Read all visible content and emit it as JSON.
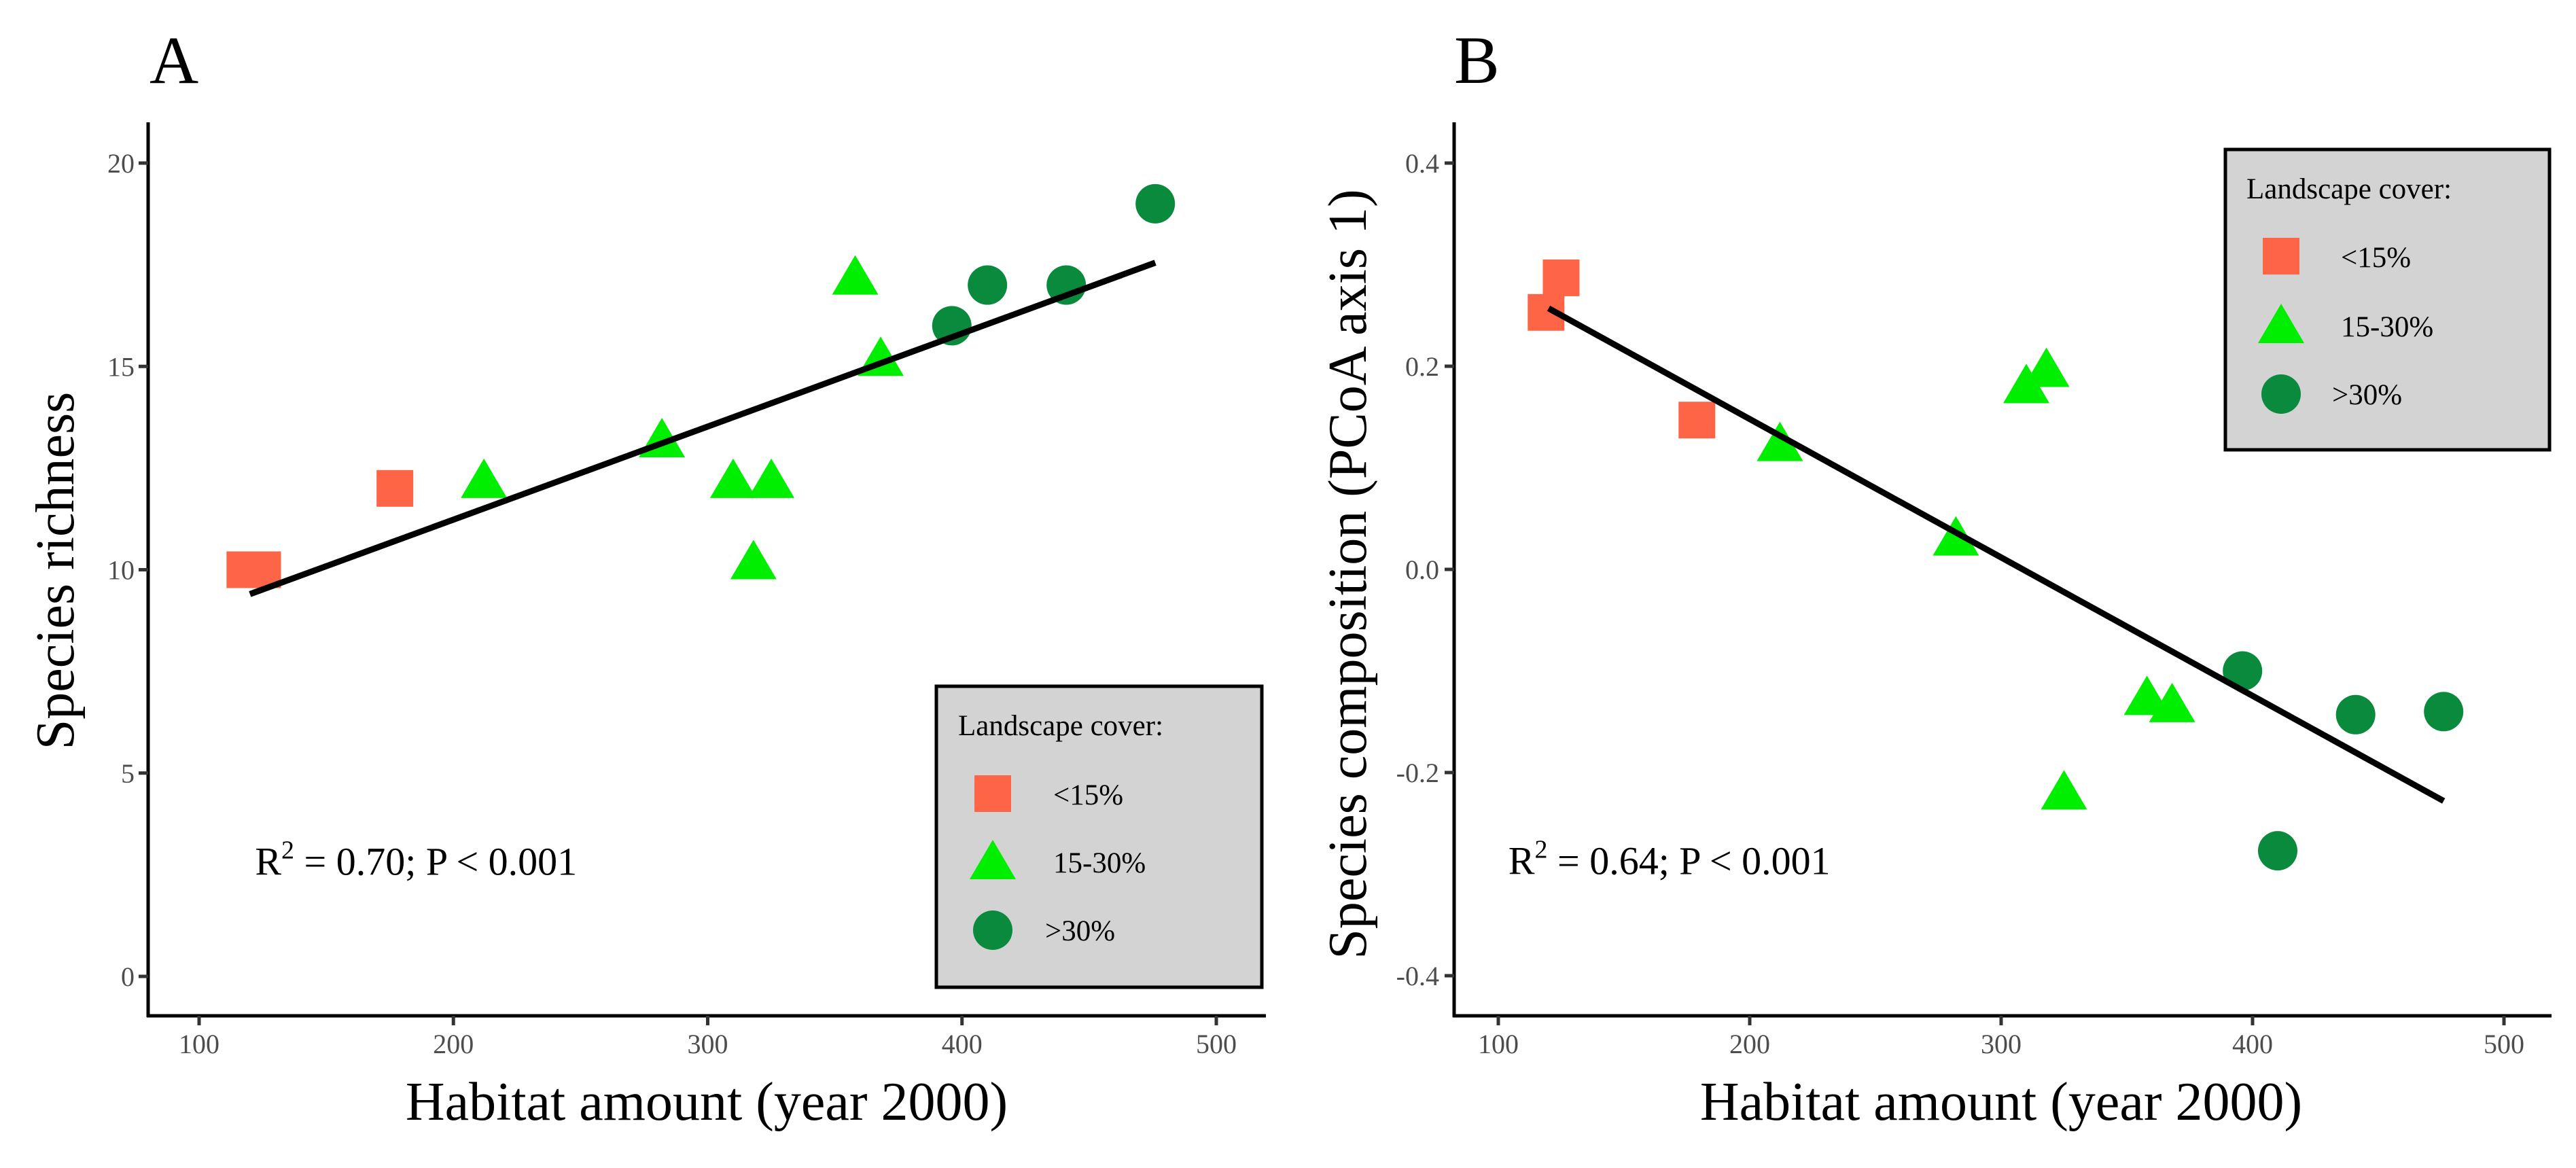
{
  "colors": {
    "lt15": "#fe6446",
    "mid": "#00ee00",
    "gt30": "#0a8a3c",
    "legend_bg": "#d3d3d3"
  },
  "chart_data": [
    {
      "type": "scatter",
      "panel_label": "A",
      "xlabel": "Habitat amount (year 2000)",
      "ylabel": "Species richness",
      "xlim": [
        80,
        520
      ],
      "ylim": [
        -1,
        21
      ],
      "x_ticks": [
        100,
        200,
        300,
        400,
        500
      ],
      "x_tick_labels": [
        "100",
        "200",
        "300",
        "400",
        "500"
      ],
      "y_ticks": [
        0,
        5,
        10,
        15,
        20
      ],
      "y_tick_labels": [
        "0",
        "5",
        "10",
        "15",
        "20"
      ],
      "regression_line": {
        "x": [
          120,
          476
        ],
        "y": [
          9.4,
          17.55
        ]
      },
      "annotation": {
        "r2_prefix": "R",
        "r2_sup": "2",
        "r2_rest": " = 0.70; P < 0.001",
        "x": 122,
        "y": 2.5
      },
      "legend": {
        "title": "Landscape cover:",
        "entries": [
          {
            "label": "<15%",
            "shape": "square",
            "group": "lt15"
          },
          {
            "label": "15-30%",
            "shape": "triangle",
            "group": "mid"
          },
          {
            "label": ">30%",
            "shape": "circle",
            "group": "gt30"
          }
        ],
        "placement": "bottom-right"
      },
      "series": [
        {
          "name": "<15%",
          "shape": "square",
          "group": "lt15",
          "points": [
            [
              118,
              10
            ],
            [
              125,
              10
            ],
            [
              177,
              12
            ]
          ]
        },
        {
          "name": "15-30%",
          "shape": "triangle",
          "group": "mid",
          "points": [
            [
              212,
              12.1
            ],
            [
              282,
              13.1
            ],
            [
              310,
              12.1
            ],
            [
              318,
              10.1
            ],
            [
              325,
              12.1
            ],
            [
              358,
              17.1
            ],
            [
              368,
              15.1
            ]
          ]
        },
        {
          "name": ">30%",
          "shape": "circle",
          "group": "gt30",
          "points": [
            [
              396,
              16
            ],
            [
              410,
              17
            ],
            [
              441,
              17
            ],
            [
              476,
              19
            ]
          ]
        }
      ]
    },
    {
      "type": "scatter",
      "panel_label": "B",
      "xlabel": "Habitat amount (year 2000)",
      "ylabel": "Species composition (PCoA axis 1)",
      "xlim": [
        80,
        520
      ],
      "ylim": [
        -0.44,
        0.44
      ],
      "x_ticks": [
        100,
        200,
        300,
        400,
        500
      ],
      "x_tick_labels": [
        "100",
        "200",
        "300",
        "400",
        "500"
      ],
      "y_ticks": [
        -0.4,
        -0.2,
        0.0,
        0.2,
        0.4
      ],
      "y_tick_labels": [
        "-0.4",
        "-0.2",
        "0.0",
        "0.2",
        "0.4"
      ],
      "regression_line": {
        "x": [
          120,
          476
        ],
        "y": [
          0.257,
          -0.228
        ]
      },
      "annotation": {
        "r2_prefix": "R",
        "r2_sup": "2",
        "r2_rest": " = 0.64; P < 0.001",
        "x": 104,
        "y": -0.3
      },
      "legend": {
        "title": "Landscape cover:",
        "entries": [
          {
            "label": "<15%",
            "shape": "square",
            "group": "lt15"
          },
          {
            "label": "15-30%",
            "shape": "triangle",
            "group": "mid"
          },
          {
            "label": ">30%",
            "shape": "circle",
            "group": "gt30"
          }
        ],
        "placement": "top-right"
      },
      "series": [
        {
          "name": "<15%",
          "shape": "square",
          "group": "lt15",
          "points": [
            [
              119,
              0.253
            ],
            [
              125,
              0.287
            ],
            [
              179,
              0.147
            ]
          ]
        },
        {
          "name": "15-30%",
          "shape": "triangle",
          "group": "mid",
          "points": [
            [
              212,
              0.12
            ],
            [
              282,
              0.027
            ],
            [
              310,
              0.177
            ],
            [
              318,
              0.193
            ],
            [
              325,
              -0.223
            ],
            [
              358,
              -0.13
            ],
            [
              368,
              -0.137
            ]
          ]
        },
        {
          "name": ">30%",
          "shape": "circle",
          "group": "gt30",
          "points": [
            [
              396,
              -0.1
            ],
            [
              410,
              -0.277
            ],
            [
              441,
              -0.143
            ],
            [
              476,
              -0.14
            ]
          ]
        }
      ]
    }
  ]
}
